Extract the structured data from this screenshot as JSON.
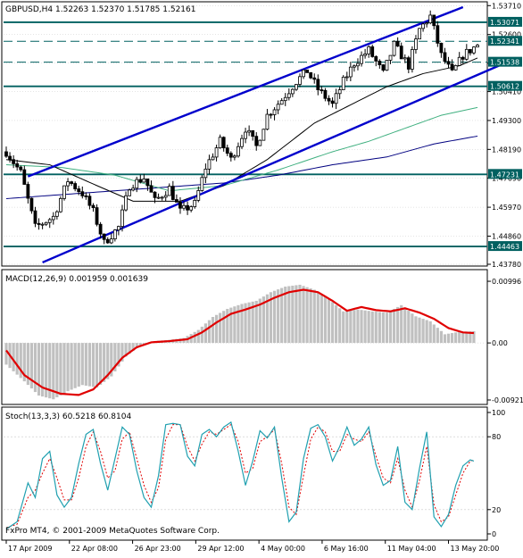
{
  "window": {
    "main_title": "GBPUSD,H4  1.52263 1.52370 1.51785 1.52161",
    "macd_title": "MACD(12,26,9) 0.001959 0.001639",
    "stoch_title": "Stoch(13,3,3) 60.5218 60.8104",
    "footer": "FxPro MT4, © 2001-2009 MetaQuotes Software Corp."
  },
  "colors": {
    "background": "#ffffff",
    "candle": "#000000",
    "channel": "#0000cc",
    "level_line": "#006060",
    "level_label_bg": "#006060",
    "ma_fast": "#000000",
    "ma_mid": "#40b080",
    "ma_slow": "#000080",
    "macd_hist": "#c0c0c0",
    "macd_signal": "#e00000",
    "stoch_main": "#20a0b0",
    "stoch_signal": "#e00000",
    "grid": "#c8c8c8"
  },
  "chart_data": [
    {
      "type": "candlestick",
      "title": "GBPUSD,H4",
      "ylim": [
        1.4378,
        1.5372
      ],
      "y_ticks": [
        "1.53710",
        "1.52600",
        "1.51500",
        "1.50410",
        "1.49300",
        "1.48190",
        "1.47090",
        "1.45970",
        "1.44860",
        "1.43780"
      ],
      "x_ticks": [
        "17 Apr 2009",
        "22 Apr 08:00",
        "26 Apr 23:00",
        "29 Apr 12:00",
        "4 May 00:00",
        "6 May 16:00",
        "11 May 04:00",
        "13 May 20:00"
      ],
      "levels": [
        {
          "label": "1.53071",
          "value": 1.53071,
          "style": "solid"
        },
        {
          "label": "1.52341",
          "value": 1.52341,
          "style": "dashed"
        },
        {
          "label": "1.51538",
          "value": 1.51538,
          "style": "dashed"
        },
        {
          "label": "1.50612",
          "value": 1.50612,
          "style": "solid"
        },
        {
          "label": "1.47231",
          "value": 1.47231,
          "style": "solid"
        },
        {
          "label": "1.44463",
          "value": 1.44463,
          "style": "solid"
        }
      ],
      "last_close": 1.52161,
      "close_trend": [
        [
          0,
          1.481
        ],
        [
          4,
          1.473
        ],
        [
          8,
          1.452
        ],
        [
          13,
          1.456
        ],
        [
          17,
          1.47
        ],
        [
          21,
          1.465
        ],
        [
          24,
          1.458
        ],
        [
          27,
          1.446
        ],
        [
          31,
          1.452
        ],
        [
          34,
          1.468
        ],
        [
          38,
          1.471
        ],
        [
          41,
          1.462
        ],
        [
          45,
          1.467
        ],
        [
          48,
          1.458
        ],
        [
          52,
          1.461
        ],
        [
          55,
          1.475
        ],
        [
          59,
          1.485
        ],
        [
          62,
          1.478
        ],
        [
          66,
          1.49
        ],
        [
          69,
          1.483
        ],
        [
          72,
          1.495
        ],
        [
          76,
          1.501
        ],
        [
          80,
          1.508
        ],
        [
          83,
          1.512
        ],
        [
          86,
          1.505
        ],
        [
          90,
          1.499
        ],
        [
          93,
          1.508
        ],
        [
          96,
          1.515
        ],
        [
          100,
          1.52
        ],
        [
          104,
          1.511
        ],
        [
          107,
          1.522
        ],
        [
          111,
          1.514
        ],
        [
          114,
          1.528
        ],
        [
          117,
          1.533
        ],
        [
          120,
          1.518
        ],
        [
          123,
          1.511
        ],
        [
          126,
          1.518
        ],
        [
          130,
          1.522
        ]
      ],
      "candle_count": 131,
      "channel_upper": [
        [
          6,
          1.4715
        ],
        [
          126,
          1.5365
        ]
      ],
      "channel_lower": [
        [
          10,
          1.4385
        ],
        [
          140,
          1.5165
        ]
      ],
      "channel_mid": [
        [
          6,
          1.4715
        ],
        [
          118,
          1.532
        ]
      ],
      "ma_fast": [
        [
          0,
          1.478
        ],
        [
          12,
          1.476
        ],
        [
          25,
          1.468
        ],
        [
          35,
          1.462
        ],
        [
          48,
          1.462
        ],
        [
          60,
          1.468
        ],
        [
          72,
          1.478
        ],
        [
          85,
          1.492
        ],
        [
          95,
          1.499
        ],
        [
          105,
          1.506
        ],
        [
          115,
          1.511
        ],
        [
          125,
          1.514
        ],
        [
          130,
          1.517
        ]
      ],
      "ma_mid": [
        [
          0,
          1.476
        ],
        [
          15,
          1.475
        ],
        [
          30,
          1.472
        ],
        [
          45,
          1.466
        ],
        [
          60,
          1.468
        ],
        [
          75,
          1.474
        ],
        [
          90,
          1.481
        ],
        [
          100,
          1.485
        ],
        [
          110,
          1.49
        ],
        [
          120,
          1.495
        ],
        [
          130,
          1.498
        ]
      ],
      "ma_slow": [
        [
          0,
          1.463
        ],
        [
          20,
          1.465
        ],
        [
          40,
          1.467
        ],
        [
          60,
          1.469
        ],
        [
          75,
          1.472
        ],
        [
          90,
          1.476
        ],
        [
          105,
          1.479
        ],
        [
          118,
          1.484
        ],
        [
          130,
          1.487
        ]
      ]
    },
    {
      "type": "bar",
      "title": "MACD(12,26,9)",
      "ylim": [
        -0.0095,
        0.0104
      ],
      "y_ticks": [
        "0.00996",
        "0.00",
        "-0.00921"
      ],
      "histogram": [
        [
          0,
          -0.0035
        ],
        [
          5,
          -0.0062
        ],
        [
          9,
          -0.0085
        ],
        [
          13,
          -0.0091
        ],
        [
          17,
          -0.0078
        ],
        [
          21,
          -0.0068
        ],
        [
          25,
          -0.0072
        ],
        [
          29,
          -0.0054
        ],
        [
          33,
          -0.0022
        ],
        [
          37,
          -0.0004
        ],
        [
          41,
          0.0003
        ],
        [
          45,
          0.0005
        ],
        [
          49,
          0.0008
        ],
        [
          53,
          0.0021
        ],
        [
          57,
          0.0042
        ],
        [
          61,
          0.0055
        ],
        [
          65,
          0.0063
        ],
        [
          69,
          0.0068
        ],
        [
          73,
          0.0082
        ],
        [
          77,
          0.0091
        ],
        [
          81,
          0.0094
        ],
        [
          85,
          0.0086
        ],
        [
          89,
          0.0071
        ],
        [
          93,
          0.0051
        ],
        [
          97,
          0.0054
        ],
        [
          101,
          0.0051
        ],
        [
          105,
          0.0049
        ],
        [
          109,
          0.0061
        ],
        [
          113,
          0.0043
        ],
        [
          117,
          0.0035
        ],
        [
          121,
          0.0014
        ],
        [
          125,
          0.0018
        ],
        [
          129,
          0.0019
        ]
      ],
      "signal": [
        [
          0,
          -0.0012
        ],
        [
          5,
          -0.0052
        ],
        [
          10,
          -0.0072
        ],
        [
          15,
          -0.0082
        ],
        [
          20,
          -0.0084
        ],
        [
          24,
          -0.0075
        ],
        [
          28,
          -0.0052
        ],
        [
          32,
          -0.0024
        ],
        [
          36,
          -0.0007
        ],
        [
          40,
          0.0001
        ],
        [
          45,
          0.0003
        ],
        [
          50,
          0.0006
        ],
        [
          54,
          0.0017
        ],
        [
          58,
          0.0033
        ],
        [
          62,
          0.0047
        ],
        [
          66,
          0.0054
        ],
        [
          70,
          0.0062
        ],
        [
          74,
          0.0073
        ],
        [
          78,
          0.0082
        ],
        [
          82,
          0.0086
        ],
        [
          86,
          0.0082
        ],
        [
          90,
          0.0068
        ],
        [
          94,
          0.0052
        ],
        [
          98,
          0.0058
        ],
        [
          102,
          0.0053
        ],
        [
          106,
          0.0051
        ],
        [
          110,
          0.0056
        ],
        [
          114,
          0.0049
        ],
        [
          118,
          0.0039
        ],
        [
          122,
          0.0024
        ],
        [
          126,
          0.0017
        ],
        [
          129,
          0.0016
        ]
      ]
    },
    {
      "type": "line",
      "title": "Stoch(13,3,3)",
      "ylim": [
        0,
        100
      ],
      "y_ticks": [
        "100",
        "80",
        "20",
        "0"
      ],
      "main": [
        [
          0,
          4
        ],
        [
          3,
          10
        ],
        [
          6,
          42
        ],
        [
          8,
          30
        ],
        [
          10,
          62
        ],
        [
          12,
          68
        ],
        [
          14,
          32
        ],
        [
          16,
          22
        ],
        [
          18,
          30
        ],
        [
          20,
          58
        ],
        [
          22,
          82
        ],
        [
          24,
          86
        ],
        [
          26,
          58
        ],
        [
          28,
          36
        ],
        [
          30,
          62
        ],
        [
          32,
          88
        ],
        [
          34,
          82
        ],
        [
          36,
          52
        ],
        [
          38,
          30
        ],
        [
          40,
          22
        ],
        [
          42,
          48
        ],
        [
          44,
          90
        ],
        [
          46,
          91
        ],
        [
          48,
          90
        ],
        [
          50,
          64
        ],
        [
          52,
          56
        ],
        [
          54,
          82
        ],
        [
          56,
          86
        ],
        [
          58,
          80
        ],
        [
          60,
          88
        ],
        [
          62,
          92
        ],
        [
          64,
          68
        ],
        [
          66,
          40
        ],
        [
          68,
          60
        ],
        [
          70,
          85
        ],
        [
          72,
          79
        ],
        [
          74,
          88
        ],
        [
          76,
          46
        ],
        [
          78,
          10
        ],
        [
          80,
          18
        ],
        [
          82,
          62
        ],
        [
          84,
          87
        ],
        [
          86,
          90
        ],
        [
          88,
          80
        ],
        [
          90,
          60
        ],
        [
          92,
          72
        ],
        [
          94,
          88
        ],
        [
          96,
          73
        ],
        [
          98,
          78
        ],
        [
          100,
          88
        ],
        [
          102,
          57
        ],
        [
          104,
          40
        ],
        [
          106,
          44
        ],
        [
          108,
          72
        ],
        [
          110,
          26
        ],
        [
          112,
          20
        ],
        [
          114,
          54
        ],
        [
          116,
          84
        ],
        [
          118,
          14
        ],
        [
          120,
          6
        ],
        [
          122,
          16
        ],
        [
          124,
          40
        ],
        [
          126,
          56
        ],
        [
          128,
          61
        ],
        [
          129,
          60
        ]
      ],
      "signal": [
        [
          0,
          5
        ],
        [
          3,
          8
        ],
        [
          6,
          30
        ],
        [
          8,
          36
        ],
        [
          10,
          50
        ],
        [
          12,
          62
        ],
        [
          14,
          46
        ],
        [
          16,
          28
        ],
        [
          18,
          28
        ],
        [
          20,
          46
        ],
        [
          22,
          72
        ],
        [
          24,
          84
        ],
        [
          26,
          68
        ],
        [
          28,
          46
        ],
        [
          30,
          52
        ],
        [
          32,
          78
        ],
        [
          34,
          84
        ],
        [
          36,
          62
        ],
        [
          38,
          40
        ],
        [
          40,
          26
        ],
        [
          42,
          38
        ],
        [
          44,
          78
        ],
        [
          46,
          90
        ],
        [
          48,
          90
        ],
        [
          50,
          72
        ],
        [
          52,
          60
        ],
        [
          54,
          74
        ],
        [
          56,
          84
        ],
        [
          58,
          82
        ],
        [
          60,
          86
        ],
        [
          62,
          90
        ],
        [
          64,
          76
        ],
        [
          66,
          50
        ],
        [
          68,
          54
        ],
        [
          70,
          76
        ],
        [
          72,
          80
        ],
        [
          74,
          86
        ],
        [
          76,
          58
        ],
        [
          78,
          22
        ],
        [
          80,
          16
        ],
        [
          82,
          48
        ],
        [
          84,
          78
        ],
        [
          86,
          88
        ],
        [
          88,
          84
        ],
        [
          90,
          68
        ],
        [
          92,
          68
        ],
        [
          94,
          82
        ],
        [
          96,
          78
        ],
        [
          98,
          76
        ],
        [
          100,
          84
        ],
        [
          102,
          64
        ],
        [
          104,
          46
        ],
        [
          106,
          42
        ],
        [
          108,
          62
        ],
        [
          110,
          36
        ],
        [
          112,
          22
        ],
        [
          114,
          44
        ],
        [
          116,
          72
        ],
        [
          118,
          24
        ],
        [
          120,
          10
        ],
        [
          122,
          14
        ],
        [
          124,
          32
        ],
        [
          126,
          50
        ],
        [
          128,
          60
        ],
        [
          129,
          61
        ]
      ]
    }
  ]
}
